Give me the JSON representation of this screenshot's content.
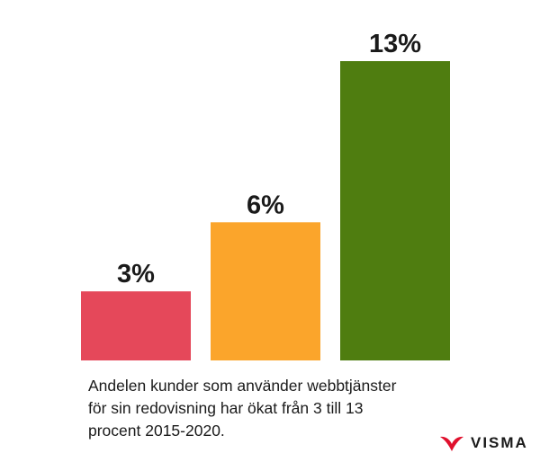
{
  "chart_data": {
    "type": "bar",
    "title": "",
    "xlabel": "",
    "ylabel": "",
    "categories": [
      "",
      "",
      ""
    ],
    "values": [
      3,
      6,
      13
    ],
    "data_labels": [
      "3%",
      "6%",
      "13%"
    ],
    "colors": [
      "#e5485a",
      "#fba52b",
      "#4f7d10"
    ],
    "ylim": [
      0,
      13
    ],
    "grid": false,
    "legend": "none"
  },
  "caption": {
    "line1": "Andelen kunder som använder webbtjänster",
    "line2": "för sin redovisning har ökat från 3 till 13",
    "line3": "procent 2015-2020."
  },
  "logo": {
    "text": "VISMA",
    "mark_color": "#e0102d",
    "icon": "visma-logo-icon"
  }
}
